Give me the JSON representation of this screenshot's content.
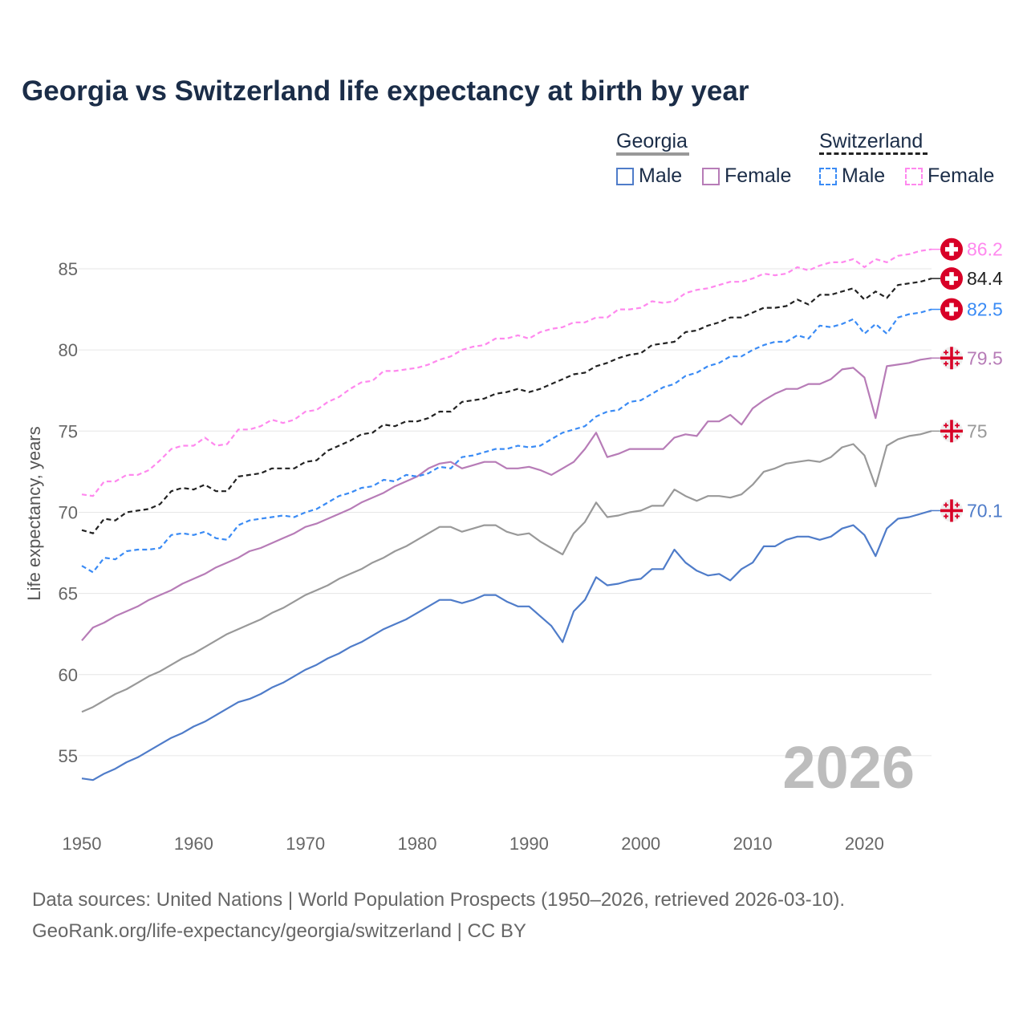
{
  "title": "Georgia vs Switzerland life expectancy at birth by year",
  "legend": {
    "groups": [
      {
        "name": "Georgia",
        "items": [
          "Male",
          "Female"
        ]
      },
      {
        "name": "Switzerland",
        "items": [
          "Male",
          "Female"
        ]
      }
    ]
  },
  "year_watermark": "2026",
  "source_line1": "Data sources: United Nations | World Population Prospects (1950–2026, retrieved 2026-03-10).",
  "source_line2": "GeoRank.org/life-expectancy/georgia/switzerland | CC BY",
  "chart_data": {
    "type": "line",
    "title": "Georgia vs Switzerland life expectancy at birth by year",
    "xlabel": "",
    "ylabel": "Life expectancy, years",
    "x_start": 1950,
    "x_end": 2026,
    "xlim": [
      1950,
      2026
    ],
    "ylim": [
      52,
      87
    ],
    "xticks": [
      1950,
      1960,
      1970,
      1980,
      1990,
      2000,
      2010,
      2020
    ],
    "yticks": [
      55,
      60,
      65,
      70,
      75,
      80,
      85
    ],
    "grid": true,
    "legend_position": "top-right",
    "series": [
      {
        "name": "Georgia Male",
        "country": "Georgia",
        "color": "#4f7cc9",
        "dashed": false,
        "flag": "georgia",
        "end_label": "70.1",
        "values": [
          53.6,
          53.5,
          53.9,
          54.2,
          54.6,
          54.9,
          55.3,
          55.7,
          56.1,
          56.4,
          56.8,
          57.1,
          57.5,
          57.9,
          58.3,
          58.5,
          58.8,
          59.2,
          59.5,
          59.9,
          60.3,
          60.6,
          61.0,
          61.3,
          61.7,
          62.0,
          62.4,
          62.8,
          63.1,
          63.4,
          63.8,
          64.2,
          64.6,
          64.6,
          64.4,
          64.6,
          64.9,
          64.9,
          64.5,
          64.2,
          64.2,
          63.6,
          63.0,
          62.0,
          63.9,
          64.6,
          66.0,
          65.5,
          65.6,
          65.8,
          65.9,
          66.5,
          66.5,
          67.7,
          66.9,
          66.4,
          66.1,
          66.2,
          65.8,
          66.5,
          66.9,
          67.9,
          67.9,
          68.3,
          68.5,
          68.5,
          68.3,
          68.5,
          69.0,
          69.2,
          68.6,
          67.3,
          69.0,
          69.6,
          69.7,
          69.9,
          70.1
        ]
      },
      {
        "name": "Georgia",
        "country": "Georgia",
        "color": "#999999",
        "dashed": false,
        "flag": "georgia",
        "end_label": "75",
        "values": [
          57.7,
          58.0,
          58.4,
          58.8,
          59.1,
          59.5,
          59.9,
          60.2,
          60.6,
          61.0,
          61.3,
          61.7,
          62.1,
          62.5,
          62.8,
          63.1,
          63.4,
          63.8,
          64.1,
          64.5,
          64.9,
          65.2,
          65.5,
          65.9,
          66.2,
          66.5,
          66.9,
          67.2,
          67.6,
          67.9,
          68.3,
          68.7,
          69.1,
          69.1,
          68.8,
          69.0,
          69.2,
          69.2,
          68.8,
          68.6,
          68.7,
          68.2,
          67.8,
          67.4,
          68.7,
          69.4,
          70.6,
          69.7,
          69.8,
          70.0,
          70.1,
          70.4,
          70.4,
          71.4,
          71.0,
          70.7,
          71.0,
          71.0,
          70.9,
          71.1,
          71.7,
          72.5,
          72.7,
          73.0,
          73.1,
          73.2,
          73.1,
          73.4,
          74.0,
          74.2,
          73.5,
          71.6,
          74.1,
          74.5,
          74.7,
          74.8,
          75.0
        ]
      },
      {
        "name": "Georgia Female",
        "country": "Georgia",
        "color": "#b77cb7",
        "dashed": false,
        "flag": "georgia",
        "end_label": "79.5",
        "values": [
          62.1,
          62.9,
          63.2,
          63.6,
          63.9,
          64.2,
          64.6,
          64.9,
          65.2,
          65.6,
          65.9,
          66.2,
          66.6,
          66.9,
          67.2,
          67.6,
          67.8,
          68.1,
          68.4,
          68.7,
          69.1,
          69.3,
          69.6,
          69.9,
          70.2,
          70.6,
          70.9,
          71.2,
          71.6,
          71.9,
          72.2,
          72.7,
          73.0,
          73.1,
          72.7,
          72.9,
          73.1,
          73.1,
          72.7,
          72.7,
          72.8,
          72.6,
          72.3,
          72.7,
          73.1,
          73.9,
          74.9,
          73.4,
          73.6,
          73.9,
          73.9,
          73.9,
          73.9,
          74.6,
          74.8,
          74.7,
          75.6,
          75.6,
          76.0,
          75.4,
          76.4,
          76.9,
          77.3,
          77.6,
          77.6,
          77.9,
          77.9,
          78.2,
          78.8,
          78.9,
          78.3,
          75.8,
          79.0,
          79.1,
          79.2,
          79.4,
          79.5
        ]
      },
      {
        "name": "Switzerland Male",
        "country": "Switzerland",
        "color": "#3a8bf5",
        "dashed": true,
        "flag": "switzerland",
        "end_label": "82.5",
        "values": [
          66.7,
          66.3,
          67.2,
          67.1,
          67.6,
          67.7,
          67.7,
          67.8,
          68.6,
          68.7,
          68.6,
          68.8,
          68.4,
          68.3,
          69.2,
          69.5,
          69.6,
          69.7,
          69.8,
          69.7,
          70.0,
          70.2,
          70.6,
          71.0,
          71.2,
          71.5,
          71.6,
          72.0,
          71.9,
          72.3,
          72.2,
          72.4,
          72.8,
          72.7,
          73.4,
          73.5,
          73.7,
          73.9,
          73.9,
          74.1,
          74.0,
          74.1,
          74.5,
          74.9,
          75.1,
          75.3,
          75.9,
          76.2,
          76.3,
          76.8,
          76.9,
          77.3,
          77.7,
          77.9,
          78.4,
          78.6,
          79.0,
          79.2,
          79.6,
          79.6,
          80.0,
          80.3,
          80.5,
          80.5,
          80.9,
          80.7,
          81.5,
          81.4,
          81.6,
          81.9,
          81.0,
          81.6,
          81.0,
          82.0,
          82.2,
          82.3,
          82.5
        ]
      },
      {
        "name": "Switzerland",
        "country": "Switzerland",
        "color": "#222222",
        "dashed": true,
        "flag": "switzerland",
        "end_label": "84.4",
        "values": [
          68.9,
          68.7,
          69.6,
          69.5,
          70.0,
          70.1,
          70.2,
          70.5,
          71.3,
          71.5,
          71.4,
          71.7,
          71.3,
          71.3,
          72.2,
          72.3,
          72.4,
          72.7,
          72.7,
          72.7,
          73.1,
          73.2,
          73.8,
          74.1,
          74.4,
          74.8,
          74.9,
          75.4,
          75.3,
          75.6,
          75.6,
          75.8,
          76.2,
          76.2,
          76.8,
          76.9,
          77.0,
          77.3,
          77.4,
          77.6,
          77.4,
          77.6,
          77.9,
          78.2,
          78.5,
          78.6,
          79.0,
          79.2,
          79.5,
          79.7,
          79.8,
          80.3,
          80.4,
          80.5,
          81.1,
          81.2,
          81.5,
          81.7,
          82.0,
          82.0,
          82.3,
          82.6,
          82.6,
          82.7,
          83.1,
          82.8,
          83.4,
          83.4,
          83.6,
          83.8,
          83.1,
          83.6,
          83.2,
          84.0,
          84.1,
          84.2,
          84.4
        ]
      },
      {
        "name": "Switzerland Female",
        "country": "Switzerland",
        "color": "#ff88ee",
        "dashed": true,
        "flag": "switzerland",
        "end_label": "86.2",
        "values": [
          71.1,
          71.0,
          71.9,
          71.9,
          72.3,
          72.3,
          72.6,
          73.2,
          73.9,
          74.1,
          74.1,
          74.6,
          74.1,
          74.2,
          75.1,
          75.1,
          75.3,
          75.7,
          75.5,
          75.7,
          76.2,
          76.3,
          76.8,
          77.1,
          77.6,
          78.0,
          78.1,
          78.7,
          78.7,
          78.8,
          78.9,
          79.1,
          79.4,
          79.6,
          80.0,
          80.2,
          80.3,
          80.7,
          80.7,
          80.9,
          80.7,
          81.1,
          81.3,
          81.4,
          81.7,
          81.7,
          82.0,
          82.0,
          82.5,
          82.5,
          82.6,
          83.0,
          82.9,
          83.0,
          83.5,
          83.7,
          83.8,
          84.0,
          84.2,
          84.2,
          84.4,
          84.7,
          84.6,
          84.7,
          85.1,
          84.9,
          85.2,
          85.4,
          85.4,
          85.6,
          85.1,
          85.6,
          85.4,
          85.8,
          85.9,
          86.1,
          86.2
        ]
      }
    ]
  }
}
